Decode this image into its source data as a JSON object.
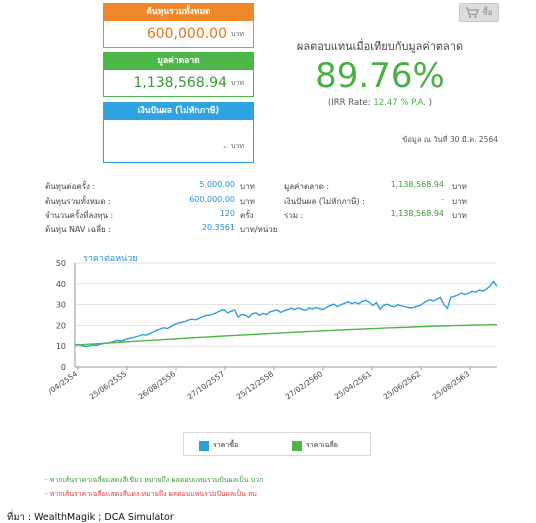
{
  "cards": {
    "cost": {
      "label": "ต้นทุนรวมทั้งหมด",
      "value": "600,000.00",
      "unit": "บาท"
    },
    "market": {
      "label": "มูลค่าตลาด",
      "value": "1,138,568.94",
      "unit": "บาท"
    },
    "dividend": {
      "label": "เงินปันผล (ไม่หักภาษี)",
      "value": "-",
      "unit": "บาท"
    }
  },
  "buy_button": {
    "label": "ซื้อ",
    "icon": "cart-icon"
  },
  "summary": {
    "return_label": "ผลตอบแทนเมื่อเทียบกับมูลค่าตลาด",
    "return_pct": "89.76%",
    "irr_prefix": "(IRR Rate:",
    "irr_value": "12.47 % P.A.",
    "irr_suffix": ")",
    "data_date": "ข้อมูล ณ วันที่ 30 มี.ค. 2564"
  },
  "stats": {
    "per_time": {
      "label": "ต้นทุนต่อครั้ง :",
      "value": "5,000.00",
      "unit": "บาท"
    },
    "total_cost": {
      "label": "ต้นทุนรวมทั้งหมด :",
      "value": "600,000.00",
      "unit": "บาท"
    },
    "times": {
      "label": "จำนวนครั้งที่ลงทุน :",
      "value": "120",
      "unit": "ครั้ง"
    },
    "avg_nav": {
      "label": "ต้นทุน NAV เฉลี่ย :",
      "value": "20.3561",
      "unit": "บาท/หน่วย"
    },
    "market_value": {
      "label": "มูลค่าตลาด :",
      "value": "1,138,568.94",
      "unit": "บาท"
    },
    "dividend": {
      "label": "เงินปันผล (ไม่หักภาษี) :",
      "value": "-",
      "unit": "บาท"
    },
    "total": {
      "label": "รวม :",
      "value": "1,138,568.94",
      "unit": "บาท"
    }
  },
  "chart_data": {
    "type": "line",
    "title": "ราคาต่อหน่วย",
    "ylim": [
      0,
      50
    ],
    "yticks": [
      0,
      10,
      20,
      30,
      40,
      50
    ],
    "xticks": [
      "/04/2554",
      "25/06/2555",
      "26/08/2556",
      "27/10/2557",
      "25/12/2558",
      "27/02/2560",
      "25/04/2561",
      "25/06/2562",
      "25/08/2563"
    ],
    "grid": true,
    "legend_position": "bottom",
    "series": [
      {
        "name": "ราคาซื้อ",
        "color": "#2e9fd8",
        "values": [
          10.5,
          10.8,
          10.2,
          9.8,
          10.1,
          10.6,
          10.4,
          10.9,
          11.2,
          11.5,
          11.8,
          12.3,
          12.9,
          12.5,
          13.1,
          13.6,
          14.0,
          14.4,
          14.9,
          15.6,
          15.3,
          16.0,
          16.8,
          17.6,
          18.2,
          18.9,
          18.5,
          19.3,
          20.4,
          21.0,
          21.5,
          21.8,
          22.6,
          23.0,
          22.7,
          23.4,
          24.2,
          24.8,
          25.0,
          25.5,
          26.2,
          27.0,
          27.6,
          26.0,
          26.8,
          27.4,
          24.0,
          25.2,
          25.0,
          23.8,
          25.6,
          26.0,
          24.8,
          25.8,
          25.2,
          26.5,
          27.0,
          27.4,
          26.2,
          27.0,
          27.6,
          28.2,
          27.6,
          28.4,
          27.8,
          27.2,
          28.4,
          27.9,
          28.6,
          28.0,
          27.6,
          28.8,
          29.6,
          30.2,
          29.0,
          30.0,
          30.6,
          31.4,
          30.5,
          31.0,
          30.4,
          31.6,
          32.0,
          31.2,
          29.5,
          31.0,
          27.8,
          29.6,
          30.2,
          29.4,
          29.0,
          30.0,
          29.4,
          29.0,
          28.6,
          28.4,
          29.0,
          29.4,
          30.4,
          31.5,
          32.4,
          31.8,
          32.6,
          33.5,
          30.0,
          28.2,
          33.5,
          34.0,
          34.6,
          35.6,
          34.8,
          35.6,
          36.4,
          36.0,
          37.0,
          36.5,
          37.5,
          38.8,
          41.2,
          38.7
        ]
      },
      {
        "name": "ราคาเฉลี่ย",
        "color": "#4cb748",
        "start": 10.5,
        "end": 20.36
      }
    ]
  },
  "notes": {
    "green": "- หากเส้นราคาเฉลี่ยแสดงสีเขียว หมายถึง ผลตอบแทนรวมปันผลเป็น บวก",
    "red": "- หากเส้นราคาเฉลี่ยแสดงสีแดง หมายถึง ผลตอบแทนรวมปันผลเป็น ลบ"
  },
  "source": "ที่มา : WealthMagik ; DCA Simulator"
}
